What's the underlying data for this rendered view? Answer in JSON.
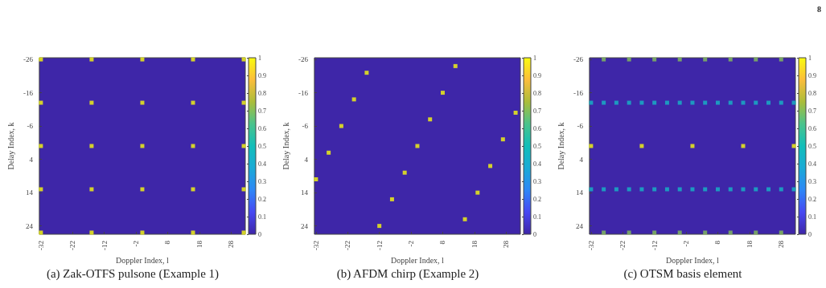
{
  "chart_data": [
    {
      "type": "scatter",
      "title": "(a) Zak-OTFS pulsone (Example 1)",
      "xlabel": "Doppler Index, l",
      "ylabel": "Delay Index, k",
      "xlim": [
        -32.5,
        32.5
      ],
      "ylim": [
        26.5,
        -26.5
      ],
      "xticks": [
        -32,
        -22,
        -12,
        -2,
        8,
        18,
        28
      ],
      "yticks": [
        -26,
        -16,
        -6,
        4,
        14,
        24
      ],
      "clim": [
        0,
        1
      ],
      "cticks": [
        0,
        0.1,
        0.2,
        0.3,
        0.4,
        0.5,
        0.6,
        0.7,
        0.8,
        0.9,
        1
      ],
      "marker": "square",
      "series": [
        {
          "x": [
            -32,
            -16,
            0,
            16,
            32,
            -32,
            -16,
            0,
            16,
            32,
            -32,
            -16,
            0,
            16,
            32,
            -32,
            -16,
            0,
            16,
            32,
            -32,
            -16,
            0,
            16,
            32
          ],
          "values": [
            -26,
            -26,
            -26,
            -26,
            -26,
            -13,
            -13,
            -13,
            -13,
            -13,
            0,
            0,
            0,
            0,
            0,
            13,
            13,
            13,
            13,
            13,
            26,
            26,
            26,
            26,
            26
          ],
          "cvalues": [
            1,
            1,
            1,
            1,
            1,
            1,
            1,
            1,
            1,
            1,
            1,
            1,
            1,
            1,
            1,
            1,
            1,
            1,
            1,
            1,
            1,
            1,
            1,
            1,
            1
          ]
        }
      ]
    },
    {
      "type": "scatter",
      "title": "(b) AFDM chirp (Example 2)",
      "xlabel": "Doppler Index, l",
      "ylabel": "Delay Index, k",
      "xlim": [
        -32.5,
        32.5
      ],
      "ylim": [
        26.5,
        -26.5
      ],
      "xticks": [
        -32,
        -22,
        -12,
        -2,
        8,
        18,
        28
      ],
      "yticks": [
        -26,
        -16,
        -6,
        4,
        14,
        24
      ],
      "clim": [
        0,
        1
      ],
      "cticks": [
        0,
        0.1,
        0.2,
        0.3,
        0.4,
        0.5,
        0.6,
        0.7,
        0.8,
        0.9,
        1
      ],
      "marker": "square",
      "series": [
        {
          "x": [
            -32,
            -28,
            -24,
            -20,
            -16,
            -12,
            -8,
            -4,
            0,
            4,
            8,
            12,
            15,
            19,
            23,
            27,
            31
          ],
          "values": [
            10,
            2,
            -6,
            -14,
            -22,
            24,
            16,
            8,
            0,
            -8,
            -16,
            -24,
            22,
            14,
            6,
            -2,
            -10
          ],
          "cvalues": [
            1,
            1,
            1,
            1,
            1,
            1,
            1,
            1,
            1,
            1,
            1,
            1,
            1,
            1,
            1,
            1,
            1
          ]
        }
      ]
    },
    {
      "type": "scatter",
      "title": "(c) OTSM basis element",
      "xlabel": "Doppler Index, l",
      "ylabel": "Delay Index, k",
      "xlim": [
        -32.5,
        32.5
      ],
      "ylim": [
        26.5,
        -26.5
      ],
      "xticks": [
        -32,
        -22,
        -12,
        -2,
        8,
        18,
        28
      ],
      "yticks": [
        -26,
        -16,
        -6,
        4,
        14,
        24
      ],
      "clim": [
        0,
        1
      ],
      "cticks": [
        0,
        0.1,
        0.2,
        0.3,
        0.4,
        0.5,
        0.6,
        0.7,
        0.8,
        0.9,
        1
      ],
      "marker": "square",
      "annotations": [
        "8"
      ],
      "series": [
        {
          "x": [
            -28,
            -20,
            -12,
            -4,
            4,
            12,
            20,
            28,
            -28,
            -20,
            -12,
            -4,
            4,
            12,
            20,
            28
          ],
          "values": [
            -26,
            -26,
            -26,
            -26,
            -26,
            -26,
            -26,
            -26,
            26,
            26,
            26,
            26,
            26,
            26,
            26,
            26
          ],
          "cvalues": [
            0.7,
            0.7,
            0.7,
            0.7,
            0.7,
            0.7,
            0.7,
            0.7,
            0.7,
            0.7,
            0.7,
            0.7,
            0.7,
            0.7,
            0.7,
            0.7
          ]
        },
        {
          "x": [
            -32,
            -28,
            -24,
            -20,
            -16,
            -12,
            -8,
            -4,
            0,
            4,
            8,
            12,
            16,
            20,
            24,
            28,
            32,
            -32,
            -28,
            -24,
            -20,
            -16,
            -12,
            -8,
            -4,
            0,
            4,
            8,
            12,
            16,
            20,
            24,
            28,
            32
          ],
          "values": [
            -13,
            -13,
            -13,
            -13,
            -13,
            -13,
            -13,
            -13,
            -13,
            -13,
            -13,
            -13,
            -13,
            -13,
            -13,
            -13,
            -13,
            13,
            13,
            13,
            13,
            13,
            13,
            13,
            13,
            13,
            13,
            13,
            13,
            13,
            13,
            13,
            13,
            13
          ],
          "cvalues": [
            0.45,
            0.45,
            0.45,
            0.45,
            0.45,
            0.45,
            0.45,
            0.45,
            0.45,
            0.45,
            0.45,
            0.45,
            0.45,
            0.45,
            0.45,
            0.45,
            0.45,
            0.45,
            0.45,
            0.45,
            0.45,
            0.45,
            0.45,
            0.45,
            0.45,
            0.45,
            0.45,
            0.45,
            0.45,
            0.45,
            0.45,
            0.45,
            0.45,
            0.45
          ]
        },
        {
          "x": [
            -32,
            -16,
            0,
            16,
            32
          ],
          "values": [
            0,
            0,
            0,
            0,
            0
          ],
          "cvalues": [
            1,
            1,
            1,
            1,
            1
          ]
        }
      ]
    }
  ]
}
